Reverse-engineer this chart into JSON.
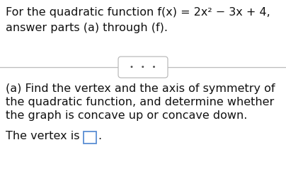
{
  "bg_color": "#ffffff",
  "title_line1": "For the quadratic function f(x) = 2x² − 3x + 4,",
  "title_line2": "answer parts (a) through (f).",
  "dots_text": "•   •   •",
  "body_line1": "(a) Find the vertex and the axis of symmetry of",
  "body_line2": "the quadratic function, and determine whether",
  "body_line3": "the graph is concave up or concave down.",
  "vertex_label": "The vertex is ",
  "main_font_size": 11.5,
  "body_font_size": 11.5,
  "text_color": "#111111",
  "box_color": "#5b8fd4",
  "divider_color": "#bbbbbb",
  "dots_color": "#555555"
}
